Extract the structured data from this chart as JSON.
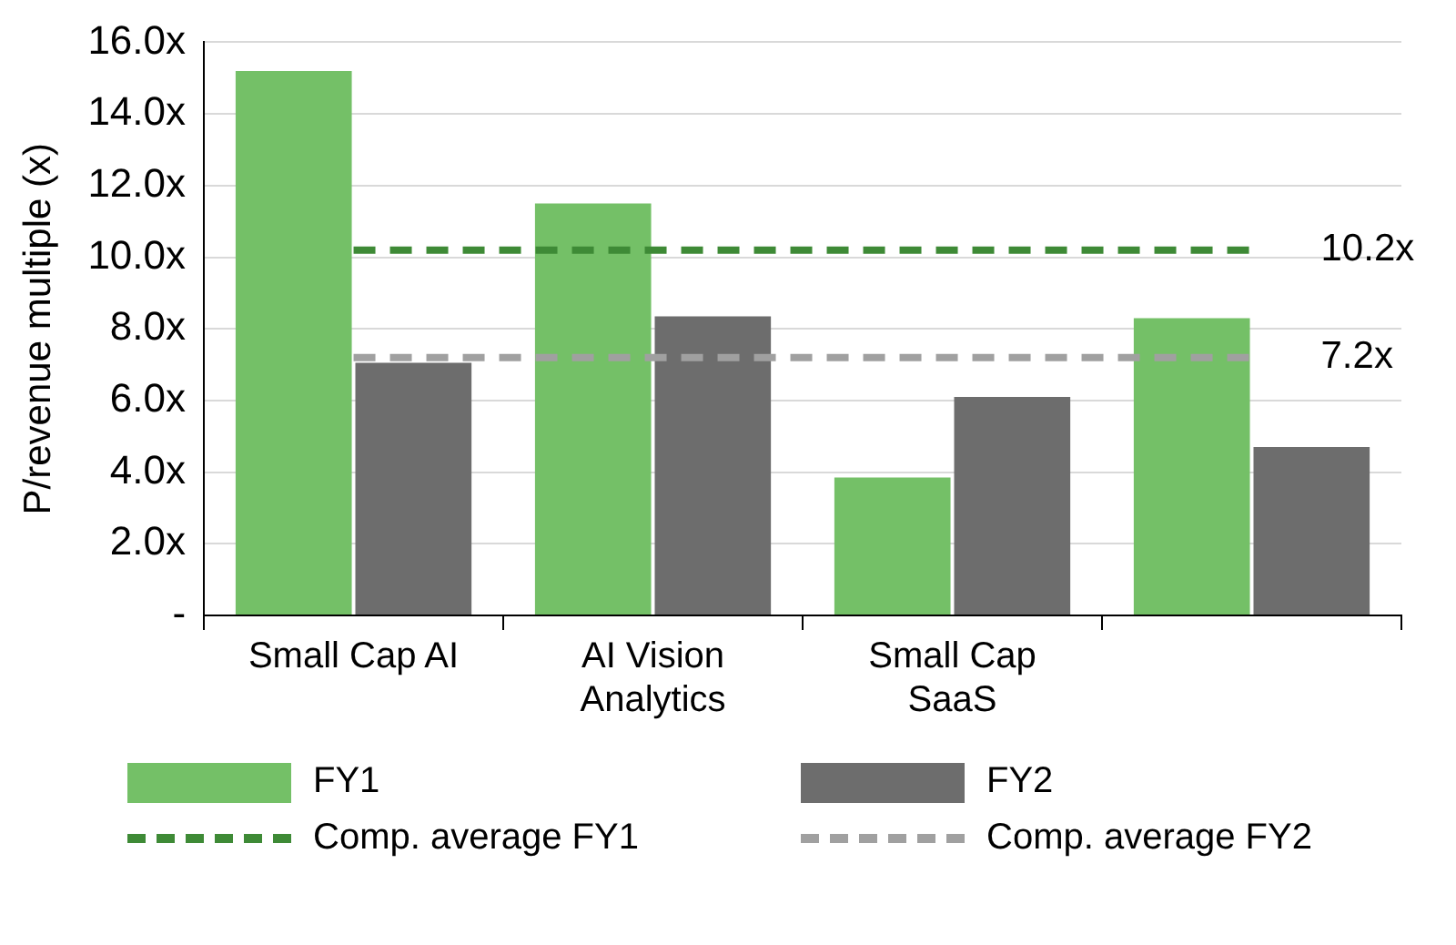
{
  "chart_data": {
    "type": "bar",
    "ylabel": "P/revenue multiple (x)",
    "categories": [
      "Small Cap AI",
      "AI Vision Analytics",
      "Small Cap SaaS",
      null
    ],
    "series": [
      {
        "name": "FY1",
        "color": "#74c067",
        "values": [
          15.2,
          11.5,
          3.85,
          8.3
        ]
      },
      {
        "name": "FY2",
        "color": "#6d6d6d",
        "values": [
          7.05,
          8.35,
          6.1,
          4.7
        ]
      },
      {
        "name": "Comp. average FY1",
        "type": "line",
        "color": "#3e8a36",
        "line_style": "dashed",
        "marker": "none",
        "values": [
          10.2,
          10.2,
          10.2,
          10.2
        ],
        "value_labels": [
          null,
          null,
          null,
          "10.2x"
        ]
      },
      {
        "name": "Comp. average FY2",
        "type": "line",
        "color": "#a0a0a0",
        "line_style": "dashed",
        "marker": "none",
        "values": [
          7.2,
          7.2,
          7.2,
          7.2
        ],
        "value_labels": [
          null,
          null,
          null,
          "7.2x"
        ]
      }
    ],
    "ylim": [
      0,
      16
    ],
    "yticks": [
      {
        "value": 0,
        "label": "-"
      },
      {
        "value": 2,
        "label": "2.0x"
      },
      {
        "value": 4,
        "label": "4.0x"
      },
      {
        "value": 6,
        "label": "6.0x"
      },
      {
        "value": 8,
        "label": "8.0x"
      },
      {
        "value": 10,
        "label": "10.0x"
      },
      {
        "value": 12,
        "label": "12.0x"
      },
      {
        "value": 14,
        "label": "14.0x"
      },
      {
        "value": 16,
        "label": "16.0x"
      }
    ],
    "grid": "y",
    "legend": "bottom"
  }
}
